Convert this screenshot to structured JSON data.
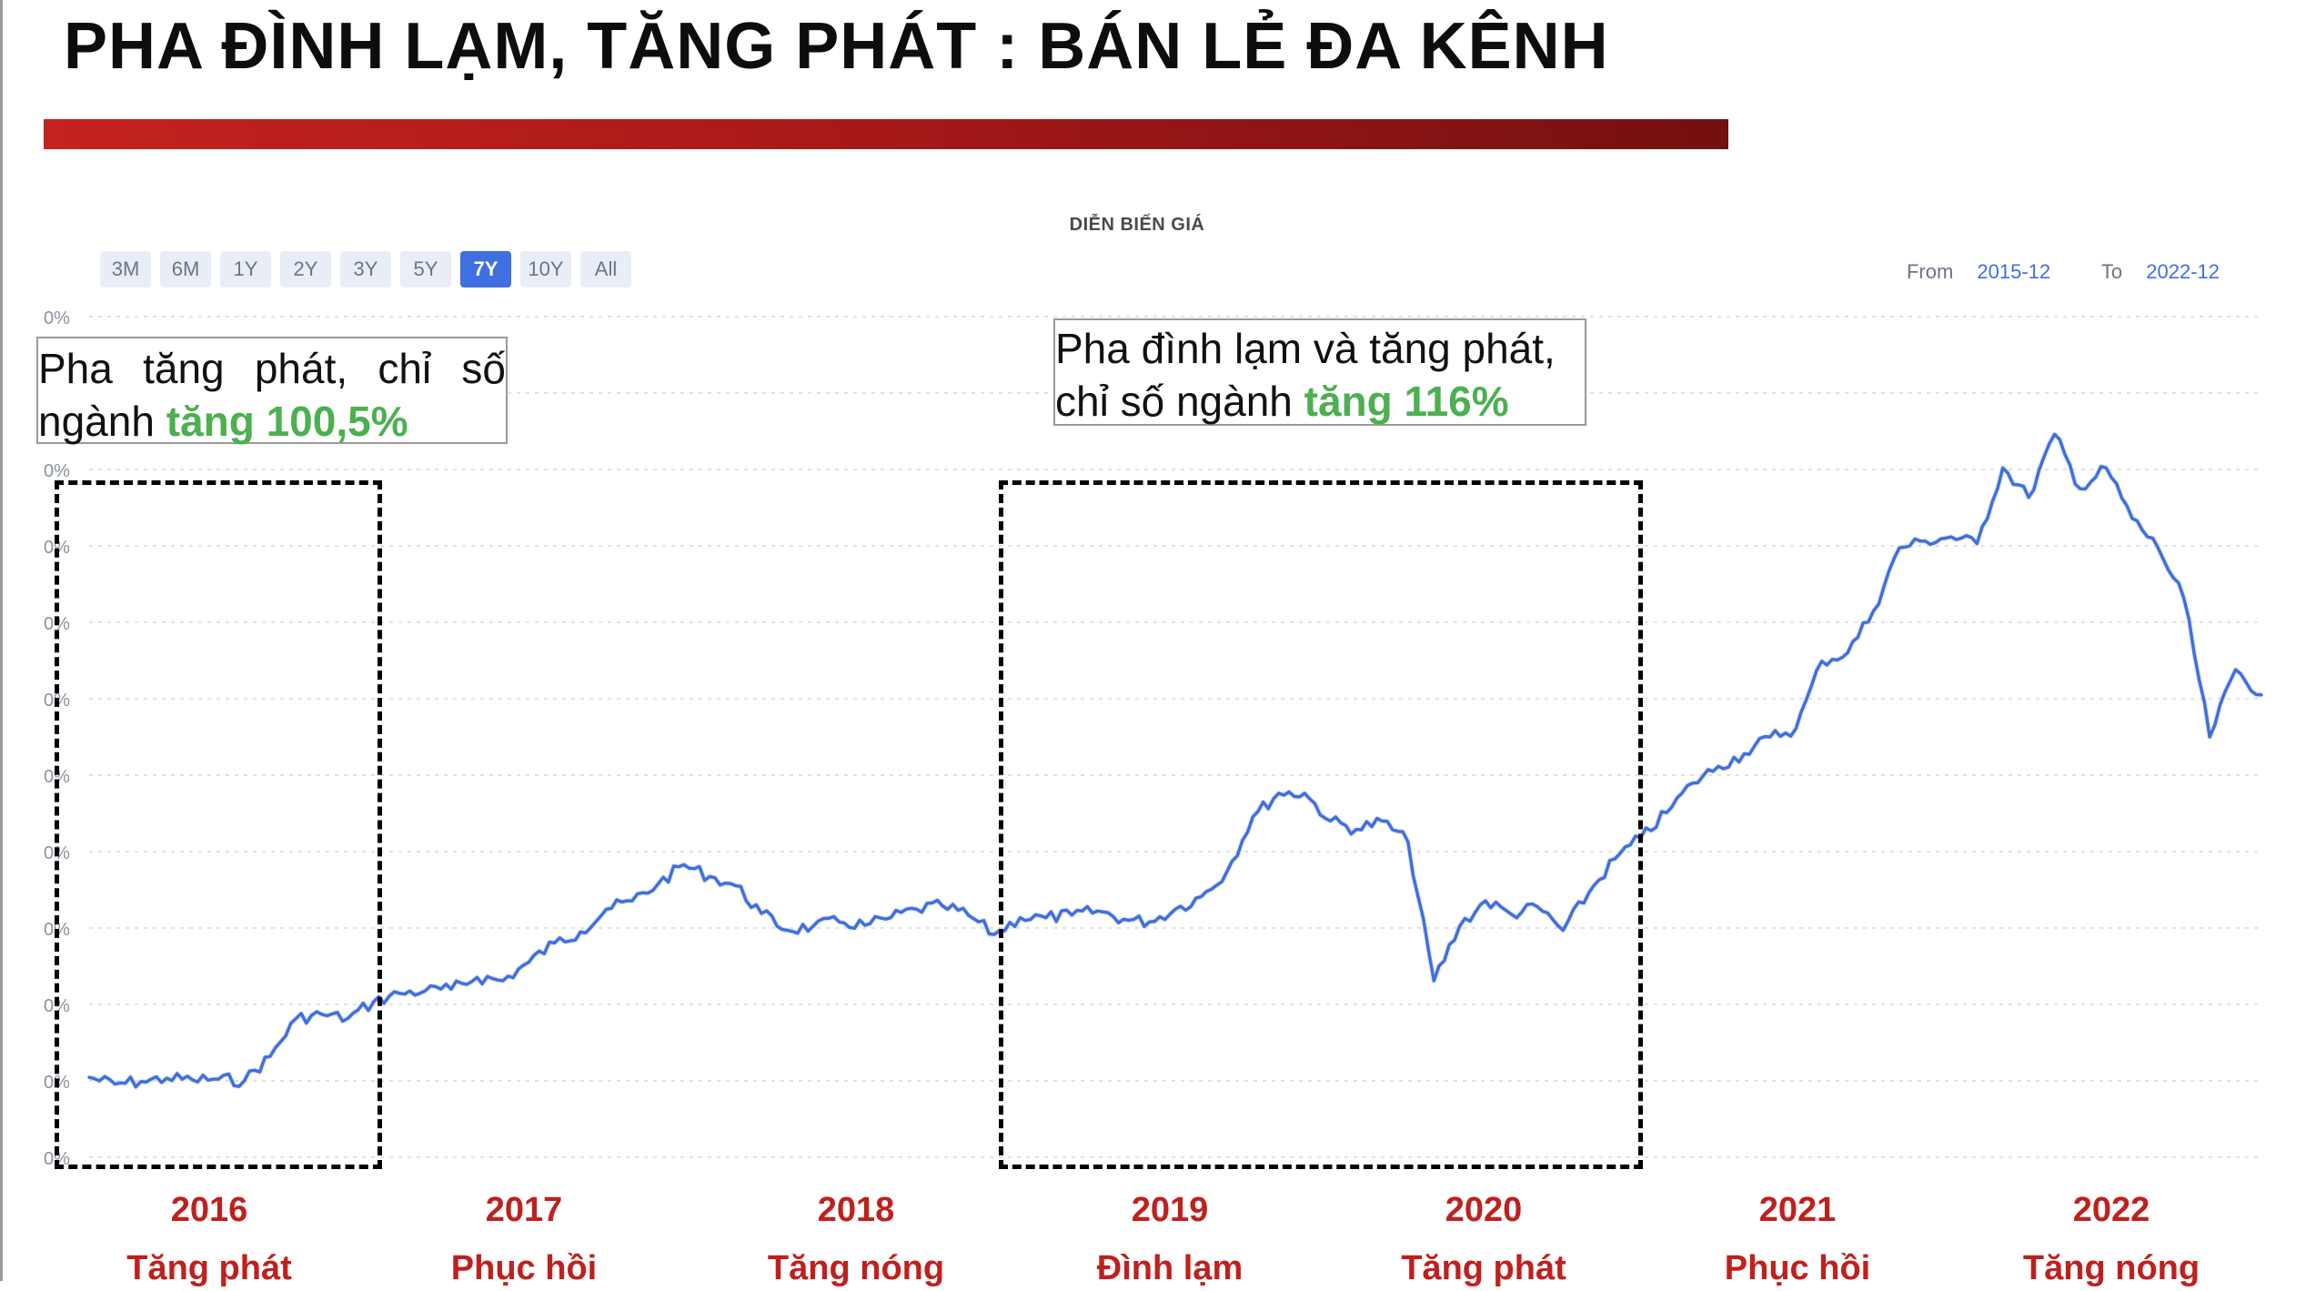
{
  "slide": {
    "title": "PHA ĐÌNH LẠM, TĂNG PHÁT : BÁN LẺ ĐA KÊNH",
    "accent_colors": {
      "title_bar_start": "#c4231f",
      "title_bar_end": "#741010",
      "year_label": "#c0201d",
      "highlight_green": "#4caf50",
      "line": "#3f6fe0"
    }
  },
  "chart_header": {
    "title": "DIỄN BIẾN GIÁ",
    "ranges": [
      {
        "label": "3M",
        "active": false
      },
      {
        "label": "6M",
        "active": false
      },
      {
        "label": "1Y",
        "active": false
      },
      {
        "label": "2Y",
        "active": false
      },
      {
        "label": "3Y",
        "active": false
      },
      {
        "label": "5Y",
        "active": false
      },
      {
        "label": "7Y",
        "active": true
      },
      {
        "label": "10Y",
        "active": false
      },
      {
        "label": "All",
        "active": false
      }
    ],
    "from_label": "From",
    "from_value": "2015-12",
    "to_label": "To",
    "to_value": "2022-12"
  },
  "annotations": {
    "callout_1": {
      "line1_words": [
        "Pha",
        "tăng",
        "phát,",
        "chỉ",
        "số"
      ],
      "line2_prefix": "ngành ",
      "line2_highlight": "tăng 100,5%"
    },
    "callout_2": {
      "line1": "Pha đình lạm và tăng phát,",
      "line2_prefix": "chỉ số ngành ",
      "line2_highlight": "tăng 116%"
    }
  },
  "timeline": [
    {
      "year": "2016",
      "phase": "Tăng phát"
    },
    {
      "year": "2017",
      "phase": "Phục hồi"
    },
    {
      "year": "2018",
      "phase": "Tăng nóng"
    },
    {
      "year": "2019",
      "phase": "Đình lạm"
    },
    {
      "year": "2020",
      "phase": "Tăng phát"
    },
    {
      "year": "2021",
      "phase": "Phục hồi"
    },
    {
      "year": "2022",
      "phase": "Tăng nóng"
    }
  ],
  "chart_data": {
    "type": "line",
    "title": "DIỄN BIẾN GIÁ",
    "x_range": [
      "2015-12",
      "2022-12"
    ],
    "y_tick_labels": [
      "0%",
      "0%",
      "0%",
      "0%",
      "0%",
      "0%",
      "0%",
      "0%",
      "0%",
      "0%",
      "0%",
      "0%"
    ],
    "y_unit_note": "relative index level, 0 = chart bottom, 100 = chart top",
    "ylim": [
      0,
      100
    ],
    "grid": true,
    "series": [
      {
        "color": "#3f6fe0",
        "x": [
          "2015-12",
          "2016-01",
          "2016-02",
          "2016-03",
          "2016-04",
          "2016-05",
          "2016-06",
          "2016-07",
          "2016-08",
          "2016-09",
          "2016-10",
          "2016-11",
          "2016-12",
          "2017-01",
          "2017-02",
          "2017-03",
          "2017-04",
          "2017-05",
          "2017-06",
          "2017-07",
          "2017-08",
          "2017-09",
          "2017-10",
          "2017-11",
          "2017-12",
          "2018-01",
          "2018-02",
          "2018-03",
          "2018-04",
          "2018-05",
          "2018-06",
          "2018-07",
          "2018-08",
          "2018-09",
          "2018-10",
          "2018-11",
          "2018-12",
          "2019-01",
          "2019-02",
          "2019-03",
          "2019-04",
          "2019-05",
          "2019-06",
          "2019-07",
          "2019-08",
          "2019-09",
          "2019-10",
          "2019-11",
          "2019-12",
          "2020-01",
          "2020-02",
          "2020-03",
          "2020-04",
          "2020-05",
          "2020-06",
          "2020-07",
          "2020-08",
          "2020-09",
          "2020-10",
          "2020-11",
          "2020-12",
          "2021-01",
          "2021-02",
          "2021-03",
          "2021-04",
          "2021-05",
          "2021-06",
          "2021-07",
          "2021-08",
          "2021-09",
          "2021-10",
          "2021-11",
          "2021-12",
          "2022-01",
          "2022-02",
          "2022-03",
          "2022-04",
          "2022-05",
          "2022-06",
          "2022-07",
          "2022-08",
          "2022-09",
          "2022-10",
          "2022-11",
          "2022-12"
        ],
        "y": [
          9.5,
          8.7,
          9.0,
          9.4,
          9.2,
          9.3,
          9.1,
          12.0,
          16.5,
          17.0,
          16.5,
          18.5,
          19.5,
          19.8,
          20.0,
          21.4,
          21.0,
          23.2,
          25.5,
          26.8,
          29.5,
          30.5,
          32.5,
          34.8,
          33.4,
          32.3,
          29.0,
          27.0,
          27.5,
          28.0,
          27.6,
          28.5,
          29.5,
          29.9,
          28.8,
          26.5,
          28.5,
          28.5,
          28.8,
          29.3,
          28.3,
          28.0,
          29.5,
          31.0,
          34.0,
          40.5,
          43.3,
          43.3,
          40.0,
          39.0,
          40.0,
          37.5,
          21.0,
          27.5,
          30.5,
          28.9,
          29.8,
          27.0,
          31.5,
          35.5,
          38.0,
          41.0,
          44.5,
          46.5,
          48.0,
          50.0,
          51.0,
          59.0,
          60.0,
          65.0,
          72.5,
          73.3,
          73.8,
          73.0,
          82.0,
          78.5,
          86.0,
          79.5,
          82.0,
          76.0,
          72.5,
          66.5,
          50.0,
          58.0,
          55.0
        ]
      }
    ]
  }
}
